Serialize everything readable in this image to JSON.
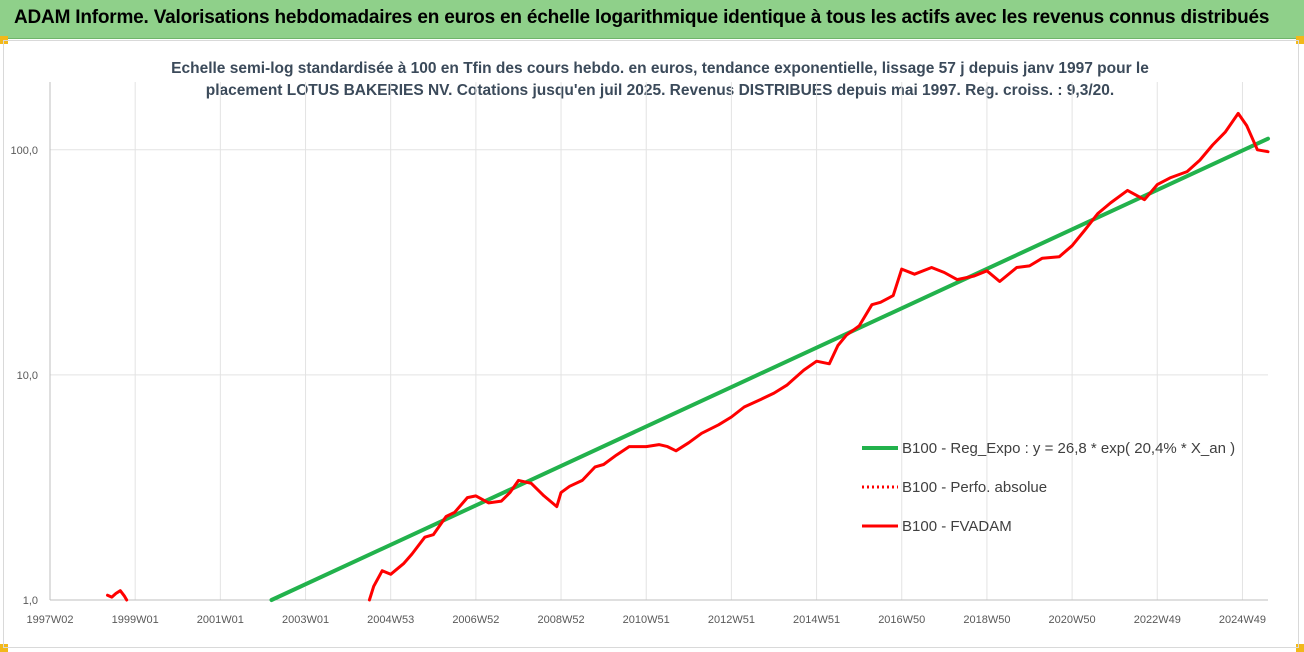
{
  "header": {
    "title": "ADAM Informe. Valorisations hebdomadaires en euros en échelle logarithmique identique à tous les actifs avec les revenus connus distribués"
  },
  "chart_data": {
    "type": "line",
    "title": "Echelle semi-log standardisée à 100 en Tfin des cours hebdo. en euros, tendance exponentielle, lissage 57 j depuis janv 1997 pour le placement LOTUS BAKERIES NV. Cotations jusqu'en juil 2025. Revenus DISTRIBUES depuis mai 1997. Reg. croiss. : 9,3/20.",
    "y_scale": "log",
    "ylim": [
      1,
      200
    ],
    "xlim": [
      1997.0,
      2025.6
    ],
    "y_ticks": [
      "1,0",
      "10,0",
      "100,0"
    ],
    "y_tick_values": [
      1,
      10,
      100
    ],
    "x_ticks": [
      "1997W02",
      "1999W01",
      "2001W01",
      "2003W01",
      "2004W53",
      "2006W52",
      "2008W52",
      "2010W51",
      "2012W51",
      "2014W51",
      "2016W50",
      "2018W50",
      "2020W50",
      "2022W49",
      "2024W49"
    ],
    "x_tick_values": [
      1997.0,
      1999.0,
      2001.0,
      2003.0,
      2005.0,
      2007.0,
      2009.0,
      2011.0,
      2013.0,
      2015.0,
      2017.0,
      2019.0,
      2021.0,
      2023.0,
      2025.0
    ],
    "grid": "vertical",
    "legend_position": "right",
    "series": [
      {
        "name": "B100 - Reg_Expo : y = 26,8 * exp( 20,4% *  X_an )",
        "color": "#22b24c",
        "style": "solid",
        "x": [
          2002.2,
          2025.6
        ],
        "y": [
          1.0,
          112.0
        ]
      },
      {
        "name": "B100 - Perfo. absolue",
        "color": "#ff0000",
        "style": "dotted",
        "x": [],
        "y": []
      },
      {
        "name": "B100 - FVADAM",
        "color": "#ff0000",
        "style": "solid",
        "segments": [
          {
            "x": [
              1998.35,
              1998.45,
              1998.55,
              1998.65,
              1998.75,
              1998.8
            ],
            "y": [
              1.05,
              1.03,
              1.07,
              1.1,
              1.04,
              1.0
            ]
          },
          {
            "x": [
              2004.5,
              2004.6,
              2004.8,
              2005.0,
              2005.3,
              2005.5,
              2005.8,
              2006.0,
              2006.3,
              2006.5,
              2006.8,
              2007.0,
              2007.3,
              2007.6,
              2007.8,
              2008.0,
              2008.3,
              2008.6,
              2008.9,
              2009.0,
              2009.2,
              2009.5,
              2009.8,
              2010.0,
              2010.3,
              2010.6,
              2011.0,
              2011.3,
              2011.5,
              2011.7,
              2012.0,
              2012.3,
              2012.7,
              2013.0,
              2013.3,
              2013.7,
              2014.0,
              2014.3,
              2014.7,
              2015.0,
              2015.3,
              2015.5,
              2015.7,
              2016.0,
              2016.3,
              2016.5,
              2016.8,
              2017.0,
              2017.3,
              2017.7,
              2018.0,
              2018.3,
              2018.7,
              2019.0,
              2019.3,
              2019.7,
              2020.0,
              2020.3,
              2020.7,
              2021.0,
              2021.3,
              2021.6,
              2021.9,
              2022.3,
              2022.7,
              2023.0,
              2023.3,
              2023.7,
              2024.0,
              2024.3,
              2024.6,
              2024.9,
              2025.1,
              2025.35,
              2025.6
            ],
            "y": [
              1.0,
              1.15,
              1.35,
              1.3,
              1.45,
              1.6,
              1.9,
              1.95,
              2.35,
              2.45,
              2.85,
              2.9,
              2.7,
              2.75,
              3.0,
              3.4,
              3.3,
              2.9,
              2.6,
              3.0,
              3.2,
              3.4,
              3.9,
              4.0,
              4.4,
              4.8,
              4.8,
              4.9,
              4.8,
              4.6,
              5.0,
              5.5,
              6.0,
              6.5,
              7.2,
              7.8,
              8.3,
              9.0,
              10.5,
              11.5,
              11.2,
              13.5,
              15.0,
              16.5,
              20.5,
              21.0,
              22.5,
              29.5,
              28.0,
              30.0,
              28.5,
              26.5,
              27.5,
              29.0,
              26.0,
              30.0,
              30.5,
              33.0,
              33.5,
              37.5,
              44.0,
              52.0,
              58.0,
              66.0,
              60.0,
              70.0,
              75.0,
              80.0,
              90.0,
              105.0,
              120.0,
              145.0,
              128.0,
              100.0,
              98.0
            ]
          }
        ]
      }
    ]
  }
}
